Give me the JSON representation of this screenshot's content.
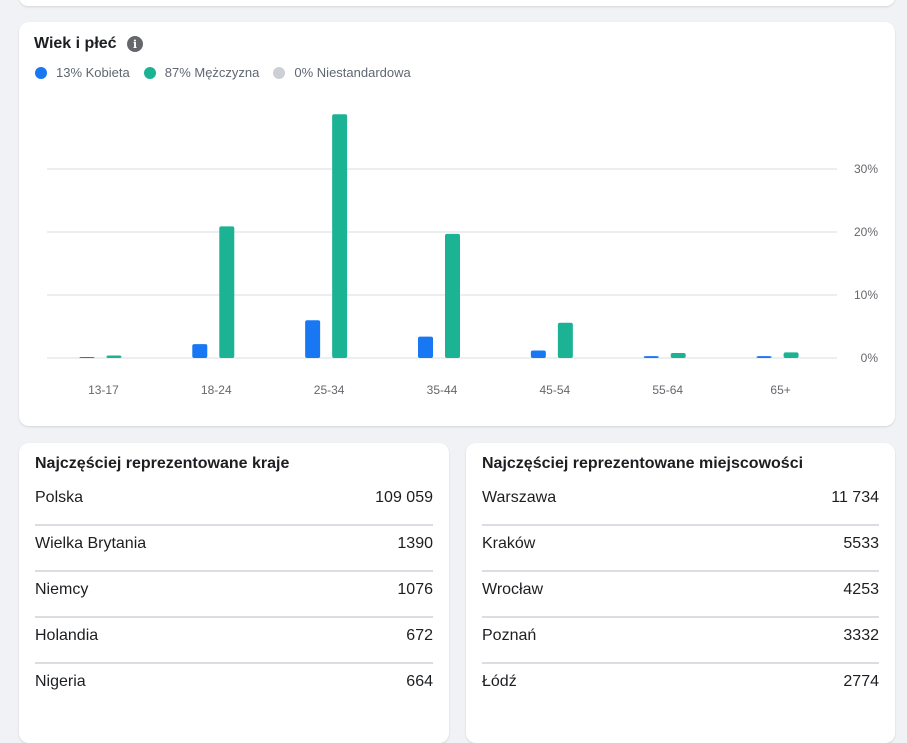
{
  "age_gender": {
    "title": "Wiek i płeć",
    "info_icon": "info-icon",
    "legend": [
      {
        "label": "13% Kobieta",
        "color": "#1877f2"
      },
      {
        "label": "87% Mężczyzna",
        "color": "#1bb394"
      },
      {
        "label": "0% Niestandardowa",
        "color": "#ccd0d5"
      }
    ]
  },
  "chart_data": {
    "type": "bar",
    "categories": [
      "13-17",
      "18-24",
      "25-34",
      "35-44",
      "45-54",
      "55-64",
      "65+"
    ],
    "series": [
      {
        "name": "Kobieta",
        "color": "#1877f2",
        "values": [
          0.1,
          2.2,
          6.0,
          3.4,
          1.2,
          0.3,
          0.3
        ]
      },
      {
        "name": "Mężczyzna",
        "color": "#1bb394",
        "values": [
          0.4,
          20.9,
          38.7,
          19.7,
          5.6,
          0.8,
          0.9
        ]
      },
      {
        "name": "Niestandardowa",
        "color": "#ccd0d5",
        "values": [
          0,
          0,
          0,
          0,
          0,
          0,
          0
        ]
      }
    ],
    "yticks": [
      "0%",
      "10%",
      "20%",
      "30%"
    ],
    "ytick_values": [
      0,
      10,
      20,
      30
    ],
    "ylim": [
      0,
      40
    ],
    "grid": true,
    "legend_position": "top-left",
    "title": "Wiek i płeć"
  },
  "countries": {
    "title": "Najczęściej reprezentowane kraje",
    "rows": [
      {
        "name": "Polska",
        "value": "109 059"
      },
      {
        "name": "Wielka Brytania",
        "value": "1390"
      },
      {
        "name": "Niemcy",
        "value": "1076"
      },
      {
        "name": "Holandia",
        "value": "672"
      },
      {
        "name": "Nigeria",
        "value": "664"
      }
    ]
  },
  "cities": {
    "title": "Najczęściej reprezentowane miejscowości",
    "rows": [
      {
        "name": "Warszawa",
        "value": "11 734"
      },
      {
        "name": "Kraków",
        "value": "5533"
      },
      {
        "name": "Wrocław",
        "value": "4253"
      },
      {
        "name": "Poznań",
        "value": "3332"
      },
      {
        "name": "Łódź",
        "value": "2774"
      }
    ]
  }
}
